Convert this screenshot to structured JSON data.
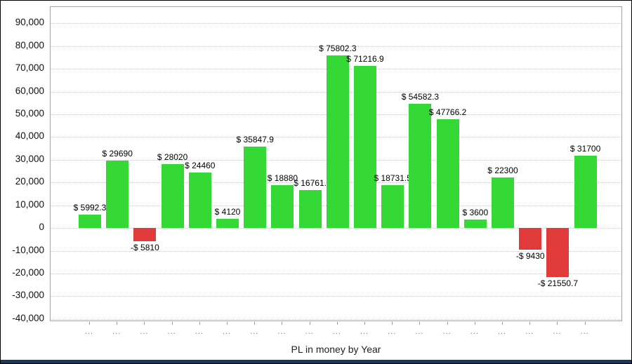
{
  "window": {
    "bottom_strip_color": "#17375d"
  },
  "chart_data": {
    "type": "bar",
    "title": "PL in money by Year",
    "xlabel": "PL in money by Year",
    "ylabel": "",
    "categories": [
      "...",
      "...",
      "...",
      "...",
      "...",
      "...",
      "...",
      "...",
      "...",
      "...",
      "...",
      "...",
      "...",
      "...",
      "...",
      "...",
      "...",
      "...",
      "..."
    ],
    "values": [
      5992.3,
      29690,
      -5810,
      28020,
      24460,
      4120,
      35847.9,
      18880,
      16761,
      75802.3,
      71216.9,
      18731.5,
      54582.3,
      47766.2,
      3600,
      22300,
      -9430,
      -21550.7,
      31700
    ],
    "bar_labels": [
      "$ 5992.3",
      "$ 29690",
      "-$ 5810",
      "$ 28020",
      "$ 24460",
      "$ 4120",
      "$ 35847.9",
      "$ 18880",
      "$ 16761.",
      "$ 75802.3",
      "$ 71216.9",
      "$ 18731.5",
      "$ 54582.3",
      "$ 47766.2",
      "$ 3600",
      "$ 22300",
      "-$ 9430",
      "-$ 21550.7",
      "$ 31700"
    ],
    "ytick_values": [
      90000,
      80000,
      70000,
      60000,
      50000,
      40000,
      30000,
      20000,
      10000,
      0,
      -10000,
      -20000,
      -30000,
      -40000
    ],
    "ytick_labels": [
      "90,000",
      "80,000",
      "70,000",
      "60,000",
      "50,000",
      "40,000",
      "30,000",
      "20,000",
      "10,000",
      "0",
      "-10,000",
      "-20,000",
      "-30,000",
      "-40,000"
    ],
    "ylim": [
      -41300,
      97200
    ],
    "grid": "horizontal-dotted",
    "legend": "none",
    "positive_color": "#35d935",
    "negative_color": "#e03a3a"
  }
}
